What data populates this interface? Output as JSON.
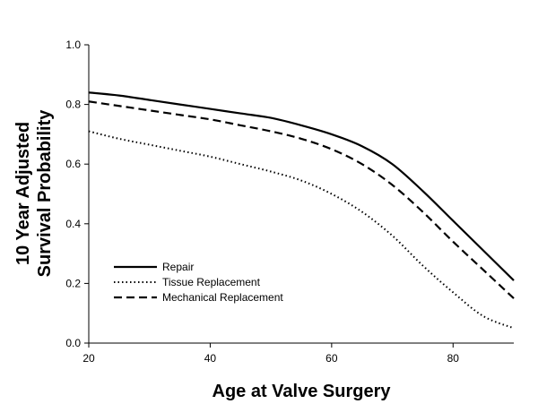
{
  "chart_data": {
    "type": "line",
    "title": "",
    "xlabel": "Age at Valve Surgery",
    "ylabel_lines": [
      "10 Year Adjusted",
      "Survival Probability"
    ],
    "xlim": [
      20,
      90
    ],
    "ylim": [
      0.0,
      1.0
    ],
    "xticks": [
      20,
      40,
      60,
      80
    ],
    "xtick_labels": [
      "20",
      "40",
      "60",
      "80"
    ],
    "yticks": [
      0.0,
      0.2,
      0.4,
      0.6,
      0.8,
      1.0
    ],
    "ytick_labels": [
      "0.0",
      "0.2",
      "0.4",
      "0.6",
      "0.8",
      "1.0"
    ],
    "grid": false,
    "legend_position": "bottom-left",
    "series": [
      {
        "name": "Repair",
        "style": "solid",
        "color": "#000000",
        "x": [
          20,
          25,
          30,
          35,
          40,
          45,
          50,
          55,
          60,
          65,
          70,
          75,
          80,
          85,
          90
        ],
        "y": [
          0.84,
          0.83,
          0.815,
          0.8,
          0.785,
          0.77,
          0.755,
          0.73,
          0.7,
          0.66,
          0.6,
          0.51,
          0.41,
          0.31,
          0.21
        ]
      },
      {
        "name": "Tissue Replacement",
        "style": "dotted",
        "color": "#000000",
        "x": [
          20,
          25,
          30,
          35,
          40,
          45,
          50,
          55,
          60,
          65,
          70,
          75,
          80,
          85,
          90
        ],
        "y": [
          0.71,
          0.685,
          0.665,
          0.645,
          0.625,
          0.6,
          0.575,
          0.545,
          0.5,
          0.44,
          0.36,
          0.26,
          0.17,
          0.09,
          0.05
        ]
      },
      {
        "name": "Mechanical Replacement",
        "style": "dashed",
        "color": "#000000",
        "x": [
          20,
          25,
          30,
          35,
          40,
          45,
          50,
          55,
          60,
          65,
          70,
          75,
          80,
          85,
          90
        ],
        "y": [
          0.81,
          0.795,
          0.78,
          0.765,
          0.75,
          0.73,
          0.71,
          0.685,
          0.65,
          0.6,
          0.53,
          0.44,
          0.34,
          0.245,
          0.15
        ]
      }
    ]
  }
}
